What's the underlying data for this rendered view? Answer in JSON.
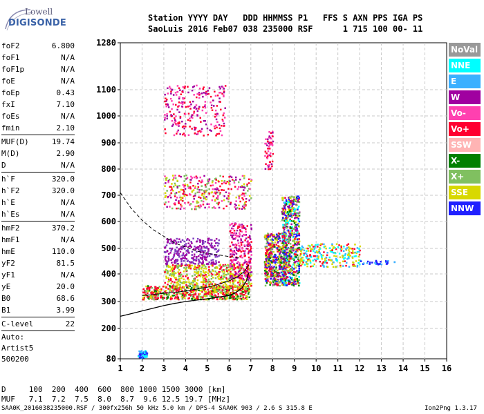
{
  "logo": {
    "line1": "Lowell",
    "line2": "DIGISONDE"
  },
  "header": {
    "line1": "Station YYYY DAY   DDD HHMMSS P1   FFS S AXN PPS IGA PS",
    "line2": "SaoLuis 2016 Feb07 038 235000 RSF      1 715 100 00- 11"
  },
  "params": {
    "group1": [
      {
        "name": "foF2",
        "value": "6.800"
      },
      {
        "name": "foF1",
        "value": "N/A"
      },
      {
        "name": "foF1p",
        "value": "N/A"
      },
      {
        "name": "foE",
        "value": "N/A"
      },
      {
        "name": "foEp",
        "value": "0.43"
      },
      {
        "name": "fxI",
        "value": "7.10"
      },
      {
        "name": "foEs",
        "value": "N/A"
      },
      {
        "name": "fmin",
        "value": "2.10"
      }
    ],
    "group2": [
      {
        "name": "MUF(D)",
        "value": "19.74"
      },
      {
        "name": "M(D)",
        "value": "2.90"
      },
      {
        "name": "D",
        "value": "N/A"
      }
    ],
    "group3": [
      {
        "name": "h`F",
        "value": "320.0"
      },
      {
        "name": "h`F2",
        "value": "320.0"
      },
      {
        "name": "h`E",
        "value": "N/A"
      },
      {
        "name": "h`Es",
        "value": "N/A"
      }
    ],
    "group4": [
      {
        "name": "hmF2",
        "value": "370.2"
      },
      {
        "name": "hmF1",
        "value": "N/A"
      },
      {
        "name": "hmE",
        "value": "110.0"
      },
      {
        "name": "yF2",
        "value": "81.5"
      },
      {
        "name": "yF1",
        "value": "N/A"
      },
      {
        "name": "yE",
        "value": "20.0"
      },
      {
        "name": "B0",
        "value": "68.6"
      },
      {
        "name": "B1",
        "value": "3.99"
      }
    ],
    "group5": [
      {
        "name": "C-level",
        "value": "22"
      }
    ]
  },
  "auto": {
    "line1": "Auto:",
    "line2": "Artist5",
    "line3": "500200"
  },
  "legend": [
    {
      "label": "NoVal",
      "color": "#999999"
    },
    {
      "label": "NNE",
      "color": "#00ffff"
    },
    {
      "label": "E",
      "color": "#3ab0ff"
    },
    {
      "label": "W",
      "color": "#a000a0"
    },
    {
      "label": "Vo-",
      "color": "#ff40b0"
    },
    {
      "label": "Vo+",
      "color": "#ff0030"
    },
    {
      "label": "SSW",
      "color": "#ffb4b4"
    },
    {
      "label": "X-",
      "color": "#008000"
    },
    {
      "label": "X+",
      "color": "#80c060"
    },
    {
      "label": "SSE",
      "color": "#d8d800"
    },
    {
      "label": "NNW",
      "color": "#2020ff"
    }
  ],
  "bottom": {
    "d_row": "D     100  200  400  600  800 1000 1500 3000 [km]",
    "muf_row": "MUF   7.1  7.2  7.5  8.0  8.7  9.6 12.5 19.7 [MHz]"
  },
  "footer": {
    "left": "SAA0K_2016038235000.RSF / 300fx256h 50 kHz 5.0 km / DPS-4 SAA0K 903 / 2.6 S 315.8 E",
    "right": "Ion2Png 1.3.17"
  },
  "chart_data": {
    "type": "scatter",
    "x_ticks": [
      "1",
      "2",
      "3",
      "4",
      "5",
      "6",
      "7",
      "8",
      "9",
      "10",
      "11",
      "12",
      "13",
      "14",
      "15",
      "16"
    ],
    "y_ticks": [
      "80",
      "200",
      "300",
      "400",
      "500",
      "600",
      "700",
      "800",
      "900",
      "1000",
      "1100",
      "1280"
    ],
    "xlim": [
      1,
      16
    ],
    "y_scale": "ionogram (80 at bottom, 1280 at top, non-linear)",
    "grid": true,
    "profile_curve": [
      [
        1.0,
        245
      ],
      [
        1.5,
        255
      ],
      [
        2.0,
        265
      ],
      [
        2.5,
        275
      ],
      [
        3.0,
        285
      ],
      [
        3.5,
        293
      ],
      [
        4.0,
        300
      ],
      [
        4.5,
        305
      ],
      [
        5.0,
        310
      ],
      [
        5.5,
        316
      ],
      [
        6.0,
        322
      ],
      [
        6.3,
        332
      ],
      [
        6.6,
        350
      ],
      [
        6.8,
        375
      ],
      [
        6.9,
        405
      ]
    ],
    "trace_curve": [
      [
        2.0,
        322
      ],
      [
        2.5,
        325
      ],
      [
        3.0,
        330
      ],
      [
        3.5,
        333
      ],
      [
        4.0,
        338
      ],
      [
        4.5,
        345
      ],
      [
        5.0,
        352
      ],
      [
        5.5,
        362
      ],
      [
        6.0,
        375
      ],
      [
        6.4,
        390
      ],
      [
        6.7,
        410
      ],
      [
        6.9,
        435
      ]
    ],
    "muf_curve": [
      [
        1.0,
        710
      ],
      [
        1.5,
        650
      ],
      [
        2.0,
        605
      ],
      [
        2.5,
        570
      ],
      [
        3.0,
        545
      ],
      [
        3.5,
        520
      ],
      [
        4.0,
        505
      ],
      [
        4.5,
        490
      ],
      [
        5.0,
        480
      ],
      [
        5.5,
        475
      ],
      [
        6.0,
        468
      ],
      [
        6.5,
        462
      ]
    ],
    "clusters": [
      {
        "x": [
          1.8,
          2.2
        ],
        "y": [
          85,
          115
        ],
        "n": 60,
        "colors": [
          "#3ab0ff",
          "#00ffff",
          "#2020ff"
        ]
      },
      {
        "x": [
          2.0,
          6.9
        ],
        "y": [
          310,
          360
        ],
        "n": 600,
        "colors": [
          "#ff0030",
          "#ff0030",
          "#d8d800",
          "#008000",
          "#80c060"
        ]
      },
      {
        "x": [
          3.0,
          7.0
        ],
        "y": [
          350,
          440
        ],
        "n": 500,
        "colors": [
          "#d8d800",
          "#d8d800",
          "#ff0030",
          "#80c060"
        ]
      },
      {
        "x": [
          3.0,
          5.5
        ],
        "y": [
          440,
          540
        ],
        "n": 300,
        "colors": [
          "#a000a0",
          "#8040c0"
        ]
      },
      {
        "x": [
          6.0,
          7.0
        ],
        "y": [
          380,
          600
        ],
        "n": 250,
        "colors": [
          "#ff0030",
          "#ff40b0",
          "#a000a0"
        ]
      },
      {
        "x": [
          7.6,
          8.6
        ],
        "y": [
          360,
          560
        ],
        "n": 500,
        "colors": [
          "#ff0030",
          "#d8d800",
          "#008000",
          "#80c060",
          "#2020ff",
          "#a000a0"
        ]
      },
      {
        "x": [
          8.4,
          9.2
        ],
        "y": [
          360,
          700
        ],
        "n": 600,
        "colors": [
          "#ff0030",
          "#d8d800",
          "#008000",
          "#80c060",
          "#2020ff",
          "#a000a0",
          "#00ffff"
        ]
      },
      {
        "x": [
          9.2,
          12.0
        ],
        "y": [
          430,
          520
        ],
        "n": 250,
        "colors": [
          "#d8d800",
          "#d8d800",
          "#ff0030",
          "#3ab0ff",
          "#00ffff"
        ]
      },
      {
        "x": [
          12.0,
          13.6
        ],
        "y": [
          440,
          455
        ],
        "n": 30,
        "colors": [
          "#3ab0ff",
          "#2020ff"
        ]
      },
      {
        "x": [
          3.0,
          7.0
        ],
        "y": [
          650,
          780
        ],
        "n": 350,
        "colors": [
          "#d8d800",
          "#ff0030",
          "#a000a0",
          "#80c060",
          "#ff40b0"
        ]
      },
      {
        "x": [
          3.0,
          5.8
        ],
        "y": [
          930,
          1120
        ],
        "n": 250,
        "colors": [
          "#a000a0",
          "#ff40b0",
          "#ff0030"
        ]
      },
      {
        "x": [
          7.6,
          8.0
        ],
        "y": [
          800,
          950
        ],
        "n": 60,
        "colors": [
          "#ff40b0",
          "#ff0030",
          "#a000a0"
        ]
      }
    ]
  }
}
